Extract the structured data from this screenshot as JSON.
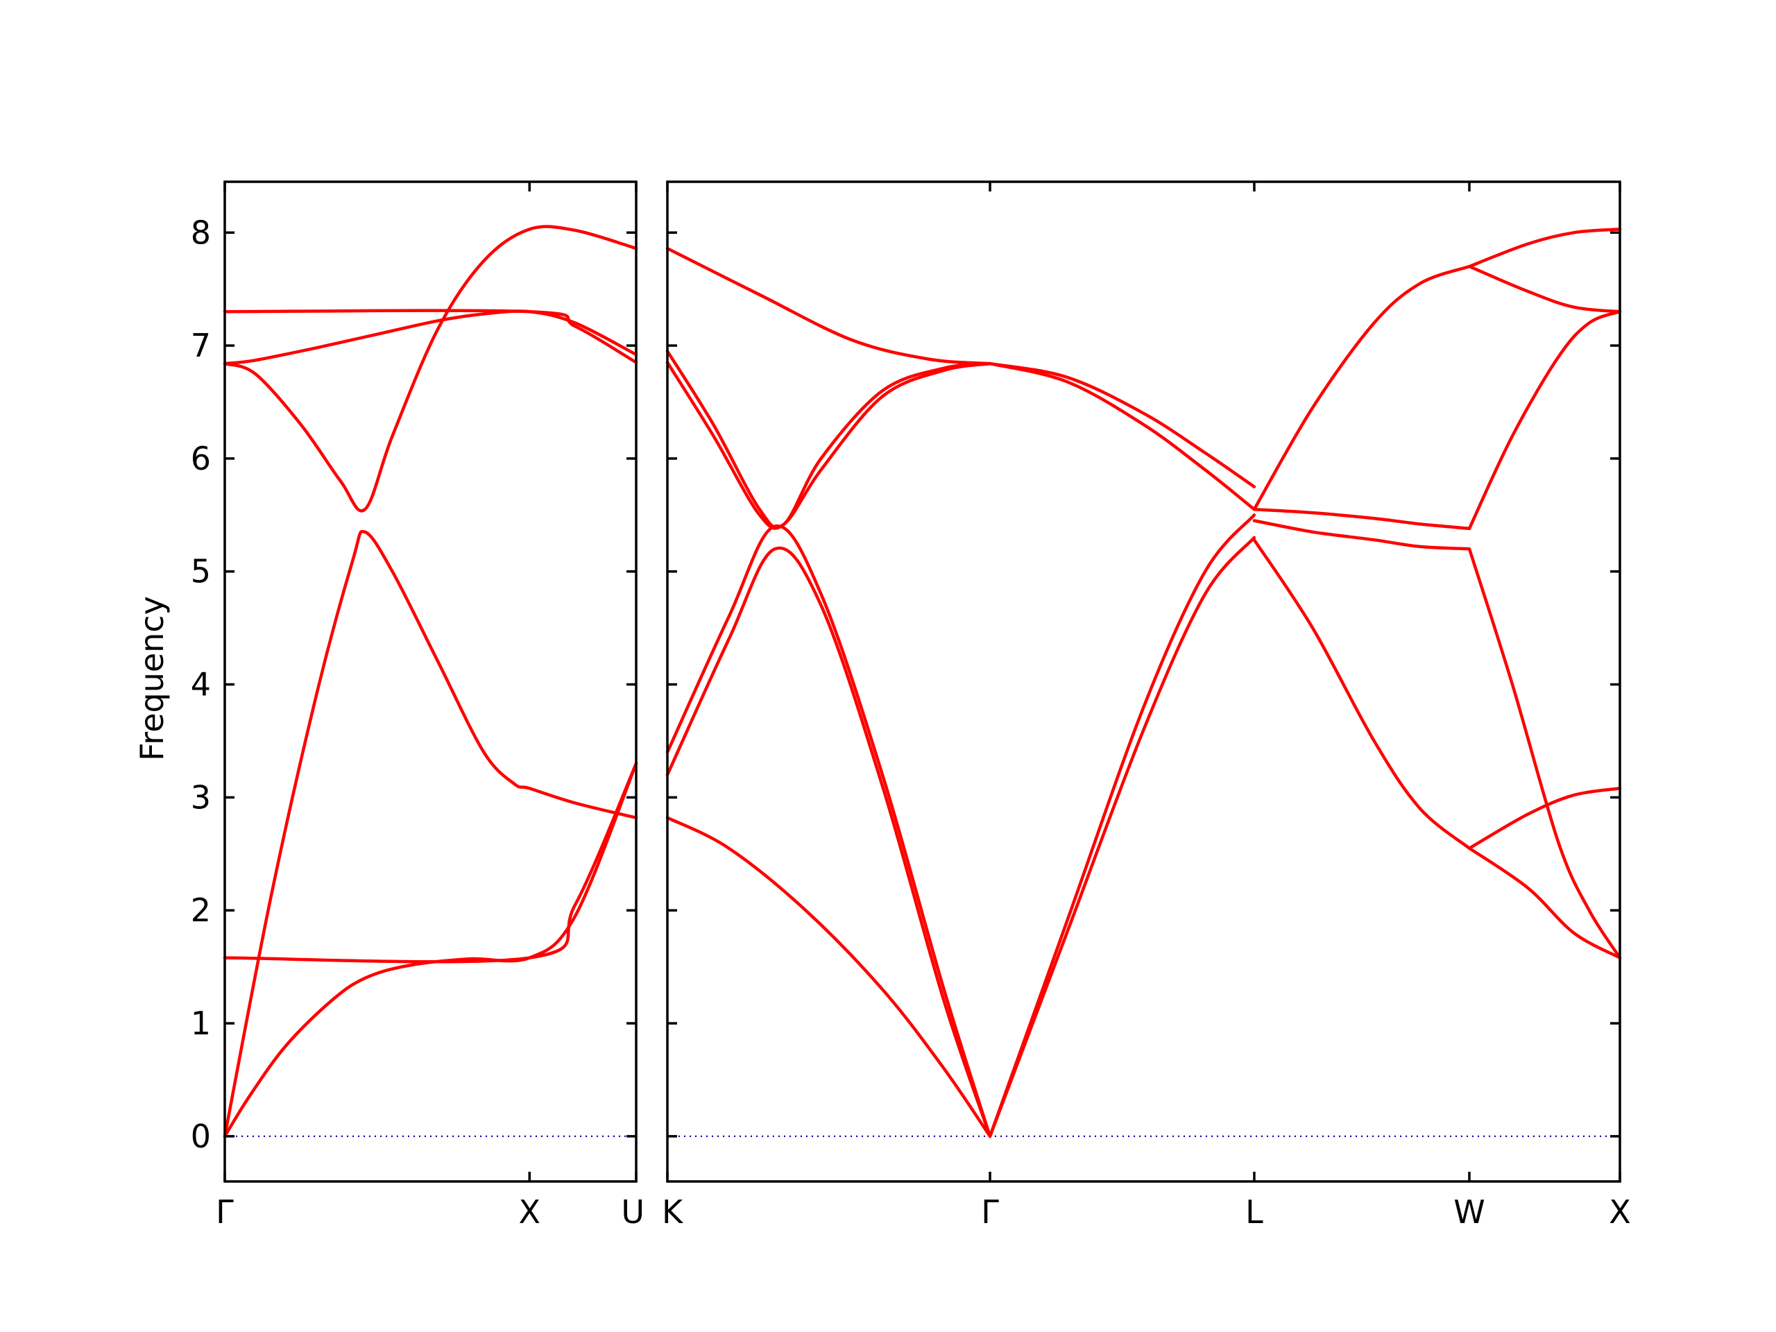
{
  "chart_data": {
    "type": "line",
    "title": "",
    "ylabel": "Frequency",
    "xlabel": "",
    "ylim": [
      -0.4,
      8.45
    ],
    "yticks": [
      "0",
      "1",
      "2",
      "3",
      "4",
      "5",
      "6",
      "7",
      "8"
    ],
    "colors": {
      "band": "#ff0000",
      "zero_line": "#0000aa",
      "frame": "#000000"
    },
    "grid": false,
    "legend": "none",
    "panels": [
      {
        "name": "left",
        "xlim": [
          0,
          1.35
        ],
        "ticks": [
          {
            "x": 0,
            "label": "Γ"
          },
          {
            "x": 1.0,
            "label": "X"
          },
          {
            "x": 1.35,
            "label": "U"
          }
        ],
        "series": [
          {
            "x": [
              0,
              0.08,
              0.2,
              0.35,
              0.46,
              0.6,
              0.8,
              1.0,
              1.15,
              1.35
            ],
            "y": [
              0,
              0.35,
              0.8,
              1.2,
              1.4,
              1.51,
              1.57,
              1.58,
              1.95,
              3.3
            ]
          },
          {
            "x": [
              0,
              0.15,
              0.3,
              0.42,
              0.46,
              0.55,
              0.7,
              0.85,
              0.95,
              1.0,
              1.15,
              1.35
            ],
            "y": [
              0,
              2.1,
              3.9,
              5.1,
              5.35,
              5.0,
              4.2,
              3.4,
              3.12,
              3.08,
              2.95,
              2.82
            ]
          },
          {
            "x": [
              0,
              0.1,
              0.25,
              0.38,
              0.46,
              0.55,
              0.7,
              0.85,
              1.0,
              1.15,
              1.35
            ],
            "y": [
              6.84,
              6.75,
              6.3,
              5.8,
              5.55,
              6.2,
              7.15,
              7.75,
              8.03,
              8.02,
              7.86
            ]
          },
          {
            "x": [
              0,
              0.1,
              0.3,
              0.5,
              0.7,
              0.85,
              1.0,
              1.15,
              1.35
            ],
            "y": [
              6.84,
              6.87,
              6.98,
              7.1,
              7.22,
              7.28,
              7.3,
              7.2,
              6.92
            ]
          },
          {
            "x": [
              0,
              1.0,
              1.15,
              1.35
            ],
            "y": [
              1.58,
              1.58,
              2.05,
              3.3
            ]
          },
          {
            "x": [
              0,
              1.0,
              1.15,
              1.35
            ],
            "y": [
              7.3,
              7.3,
              7.17,
              6.85
            ]
          }
        ]
      },
      {
        "name": "right",
        "xlim": [
          0,
          3.1
        ],
        "ticks": [
          {
            "x": 0,
            "label": "K"
          },
          {
            "x": 1.05,
            "label": "Γ"
          },
          {
            "x": 1.91,
            "label": "L"
          },
          {
            "x": 2.61,
            "label": "W"
          },
          {
            "x": 3.1,
            "label": "X"
          }
        ],
        "series": [
          {
            "x": [
              0,
              0.2,
              0.45,
              0.7,
              0.9,
              1.05
            ],
            "y": [
              2.82,
              2.55,
              2.0,
              1.3,
              0.6,
              0
            ]
          },
          {
            "x": [
              0,
              0.2,
              0.35,
              0.5,
              0.7,
              0.9,
              1.05
            ],
            "y": [
              3.2,
              4.4,
              5.2,
              4.7,
              3.1,
              1.2,
              0
            ]
          },
          {
            "x": [
              0,
              0.2,
              0.35,
              0.5,
              0.7,
              0.9,
              1.05
            ],
            "y": [
              3.4,
              4.6,
              5.4,
              4.8,
              3.2,
              1.3,
              0
            ]
          },
          {
            "x": [
              0,
              0.15,
              0.3,
              0.38,
              0.5,
              0.7,
              0.9,
              1.05
            ],
            "y": [
              6.95,
              6.3,
              5.55,
              5.42,
              6.0,
              6.6,
              6.8,
              6.84
            ]
          },
          {
            "x": [
              0,
              0.15,
              0.3,
              0.38,
              0.5,
              0.7,
              0.9,
              1.05
            ],
            "y": [
              6.85,
              6.2,
              5.5,
              5.42,
              5.9,
              6.55,
              6.78,
              6.84
            ]
          },
          {
            "x": [
              0,
              0.3,
              0.6,
              0.85,
              1.05
            ],
            "y": [
              7.86,
              7.45,
              7.05,
              6.88,
              6.84
            ]
          },
          {
            "x": [
              1.05,
              1.3,
              1.55,
              1.75,
              1.91
            ],
            "y": [
              0,
              1.8,
              3.6,
              4.8,
              5.3
            ]
          },
          {
            "x": [
              1.05,
              1.3,
              1.55,
              1.75,
              1.91
            ],
            "y": [
              0,
              1.9,
              3.8,
              5.0,
              5.5
            ]
          },
          {
            "x": [
              1.05,
              1.3,
              1.55,
              1.75,
              1.91
            ],
            "y": [
              6.84,
              6.68,
              6.3,
              5.9,
              5.55
            ]
          },
          {
            "x": [
              1.05,
              1.3,
              1.55,
              1.75,
              1.91
            ],
            "y": [
              6.84,
              6.72,
              6.4,
              6.05,
              5.75
            ]
          },
          {
            "x": [
              1.91,
              2.1,
              2.3,
              2.45,
              2.61
            ],
            "y": [
              5.28,
              4.5,
              3.5,
              2.9,
              2.55
            ]
          },
          {
            "x": [
              1.91,
              2.1,
              2.3,
              2.45,
              2.61
            ],
            "y": [
              5.45,
              5.35,
              5.28,
              5.22,
              5.2
            ]
          },
          {
            "x": [
              1.91,
              2.1,
              2.3,
              2.45,
              2.61
            ],
            "y": [
              5.55,
              5.52,
              5.47,
              5.42,
              5.38
            ]
          },
          {
            "x": [
              1.91,
              2.1,
              2.3,
              2.45,
              2.61
            ],
            "y": [
              5.55,
              6.45,
              7.2,
              7.55,
              7.7
            ]
          },
          {
            "x": [
              2.61,
              2.8,
              2.95,
              3.1
            ],
            "y": [
              2.55,
              2.2,
              1.8,
              1.58
            ]
          },
          {
            "x": [
              2.61,
              2.8,
              2.95,
              3.1
            ],
            "y": [
              2.55,
              2.85,
              3.02,
              3.08
            ]
          },
          {
            "x": [
              2.61,
              2.75,
              2.9,
              3.0,
              3.1
            ],
            "y": [
              5.2,
              4.0,
              2.6,
              2.0,
              1.58
            ]
          },
          {
            "x": [
              2.61,
              2.75,
              2.9,
              3.0,
              3.1
            ],
            "y": [
              5.38,
              6.2,
              6.9,
              7.2,
              7.3
            ]
          },
          {
            "x": [
              2.61,
              2.8,
              2.95,
              3.1
            ],
            "y": [
              7.7,
              7.48,
              7.34,
              7.3
            ]
          },
          {
            "x": [
              2.61,
              2.8,
              2.95,
              3.1
            ],
            "y": [
              7.7,
              7.9,
              8.0,
              8.03
            ]
          }
        ]
      }
    ]
  }
}
